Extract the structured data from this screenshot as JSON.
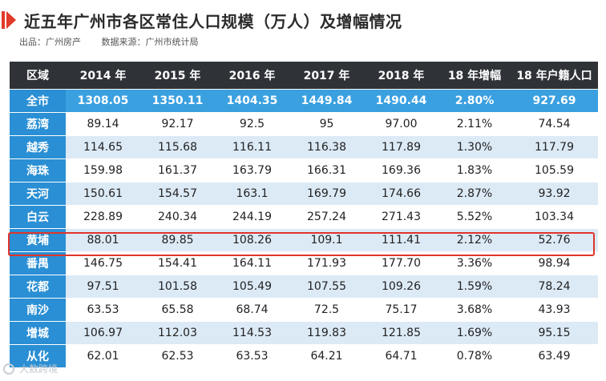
{
  "title": "近五年广州市各区常住人口规模（万人）及增幅情况",
  "source_line": {
    "publisher": "出品：广州房产",
    "source": "数据来源：广州市统计局"
  },
  "table": {
    "headers": [
      "区域",
      "2014 年",
      "2015 年",
      "2016 年",
      "2017 年",
      "2018 年",
      "18 年增幅",
      "18 年户籍人口"
    ],
    "rows": [
      [
        "全市",
        "1308.05",
        "1350.11",
        "1404.35",
        "1449.84",
        "1490.44",
        "2.80%",
        "927.69"
      ],
      [
        "荔湾",
        "89.14",
        "92.17",
        "92.5",
        "95",
        "97.00",
        "2.11%",
        "74.54"
      ],
      [
        "越秀",
        "114.65",
        "115.68",
        "116.11",
        "116.38",
        "117.89",
        "1.30%",
        "117.79"
      ],
      [
        "海珠",
        "159.98",
        "161.37",
        "163.79",
        "166.31",
        "169.36",
        "1.83%",
        "105.59"
      ],
      [
        "天河",
        "150.61",
        "154.57",
        "163.1",
        "169.79",
        "174.66",
        "2.87%",
        "93.92"
      ],
      [
        "白云",
        "228.89",
        "240.34",
        "244.19",
        "257.24",
        "271.43",
        "5.52%",
        "103.34"
      ],
      [
        "黄埔",
        "88.01",
        "89.85",
        "108.26",
        "109.1",
        "111.41",
        "2.12%",
        "52.76"
      ],
      [
        "番禺",
        "146.75",
        "154.41",
        "164.11",
        "171.93",
        "177.70",
        "3.36%",
        "98.94"
      ],
      [
        "花都",
        "97.51",
        "101.58",
        "105.49",
        "107.55",
        "109.26",
        "1.59%",
        "78.24"
      ],
      [
        "南沙",
        "63.53",
        "65.58",
        "68.74",
        "72.5",
        "75.17",
        "3.68%",
        "43.93"
      ],
      [
        "增城",
        "106.97",
        "112.03",
        "114.53",
        "119.83",
        "121.85",
        "1.69%",
        "95.15"
      ],
      [
        "从化",
        "62.01",
        "62.53",
        "63.53",
        "64.21",
        "64.71",
        "0.78%",
        "63.49"
      ]
    ],
    "highlighted_row": "黄埔"
  },
  "watermark": "大数跨境",
  "colors": {
    "header_bg": "#2f3338",
    "region_bg": "#2a8fd4",
    "stripe_bg": "#dceaf6",
    "highlight_border": "#e0342a",
    "accent": "#e23a2a"
  }
}
